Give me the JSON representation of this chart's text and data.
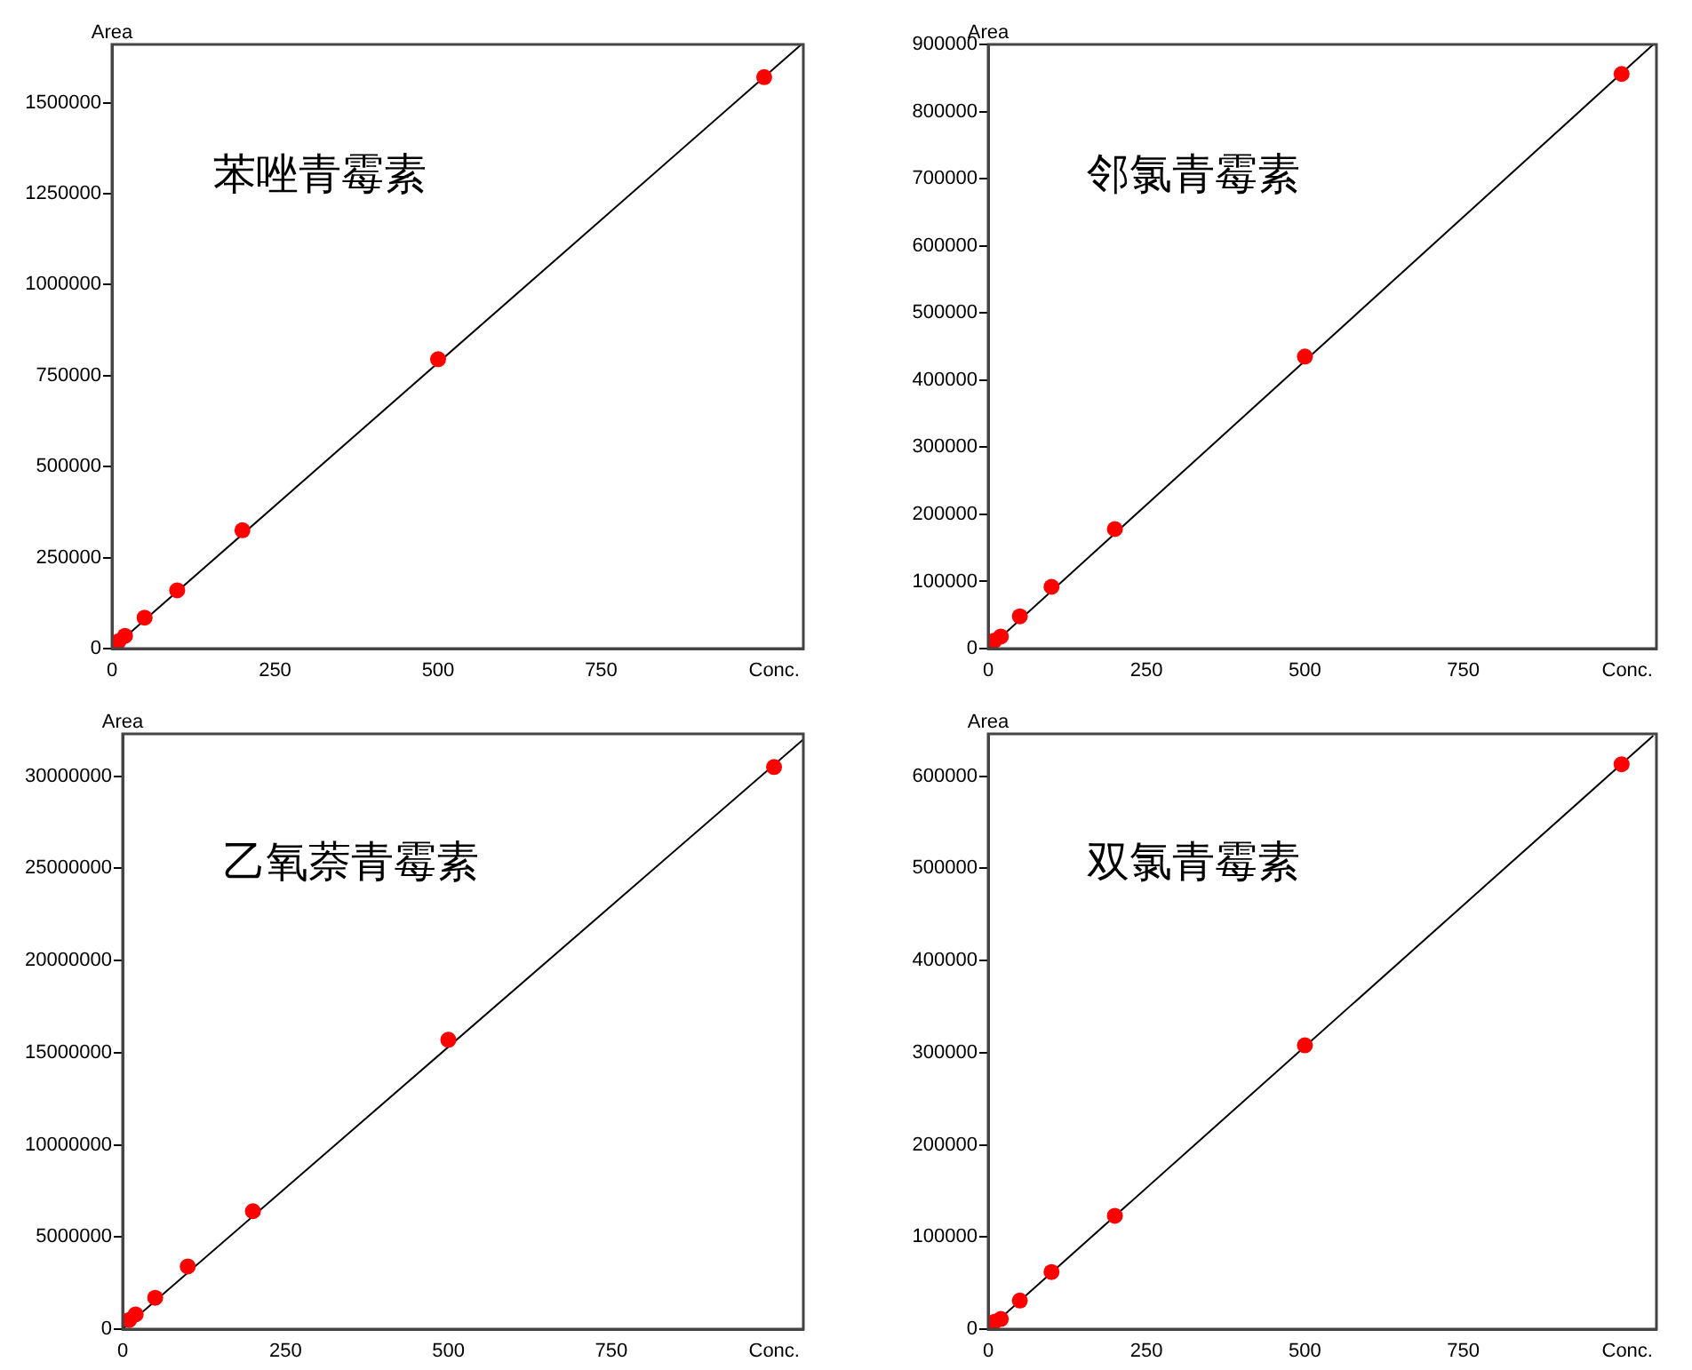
{
  "chart_data": [
    {
      "type": "scatter",
      "title": "苯唑青霉素",
      "xlabel": "Conc.",
      "ylabel": "Area",
      "xlim": [
        0,
        1060
      ],
      "xticks": [
        0,
        250,
        500,
        750
      ],
      "ylim": [
        0,
        1660000
      ],
      "yticks": [
        0,
        250000,
        500000,
        750000,
        1000000,
        1250000,
        1500000
      ],
      "series": [
        {
          "type": "scatter",
          "marker": "circle",
          "color": "#ff0000",
          "x": [
            10,
            20,
            50,
            100,
            200,
            500,
            1000
          ],
          "values": [
            20000,
            35000,
            85000,
            160000,
            325000,
            795000,
            1570000
          ]
        },
        {
          "type": "line",
          "marker": "none",
          "color": "#000000",
          "x": [
            0,
            1057
          ],
          "values": [
            0,
            1660000
          ]
        }
      ]
    },
    {
      "type": "scatter",
      "title": "邻氯青霉素",
      "xlabel": "Conc.",
      "ylabel": "Area",
      "xlim": [
        0,
        1055
      ],
      "xticks": [
        0,
        250,
        500,
        750
      ],
      "ylim": [
        0,
        900000
      ],
      "yticks": [
        0,
        100000,
        200000,
        300000,
        400000,
        500000,
        600000,
        700000,
        800000,
        900000
      ],
      "series": [
        {
          "type": "scatter",
          "marker": "circle",
          "color": "#ff0000",
          "x": [
            10,
            20,
            50,
            100,
            200,
            500,
            1000
          ],
          "values": [
            12000,
            18000,
            48000,
            92000,
            178000,
            435000,
            856000
          ]
        },
        {
          "type": "line",
          "marker": "none",
          "color": "#000000",
          "x": [
            0,
            1050
          ],
          "values": [
            0,
            900000
          ]
        }
      ]
    },
    {
      "type": "scatter",
      "title": "乙氧萘青霉素",
      "xlabel": "Conc.",
      "ylabel": "Area",
      "xlim": [
        0,
        1045
      ],
      "xticks": [
        0,
        250,
        500,
        750
      ],
      "ylim": [
        0,
        32300000
      ],
      "yticks": [
        0,
        5000000,
        10000000,
        15000000,
        20000000,
        25000000,
        30000000
      ],
      "series": [
        {
          "type": "scatter",
          "marker": "circle",
          "color": "#ff0000",
          "x": [
            10,
            20,
            50,
            100,
            200,
            500,
            1000
          ],
          "values": [
            500000,
            800000,
            1700000,
            3400000,
            6400000,
            15700000,
            30500000
          ]
        },
        {
          "type": "line",
          "marker": "none",
          "color": "#000000",
          "x": [
            0,
            1045
          ],
          "values": [
            0,
            32000000
          ]
        }
      ]
    },
    {
      "type": "scatter",
      "title": "双氯青霉素",
      "xlabel": "Conc.",
      "ylabel": "Area",
      "xlim": [
        0,
        1055
      ],
      "xticks": [
        0,
        250,
        500,
        750
      ],
      "ylim": [
        0,
        646000
      ],
      "yticks": [
        0,
        100000,
        200000,
        300000,
        400000,
        500000,
        600000
      ],
      "series": [
        {
          "type": "scatter",
          "marker": "circle",
          "color": "#ff0000",
          "x": [
            10,
            20,
            50,
            100,
            200,
            500,
            1000
          ],
          "values": [
            8000,
            11000,
            31000,
            62000,
            123000,
            308000,
            613000
          ]
        },
        {
          "type": "line",
          "marker": "none",
          "color": "#000000",
          "x": [
            0,
            1050
          ],
          "values": [
            0,
            644000
          ]
        }
      ]
    }
  ]
}
